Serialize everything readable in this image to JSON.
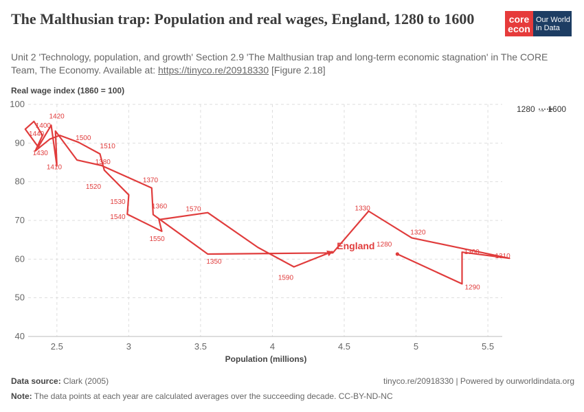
{
  "header": {
    "title": "The Malthusian trap: Population and real wages, England, 1280 to 1600",
    "subtitle_prefix": "Unit 2 'Technology, population, and growth' Section 2.9 'The Malthusian trap and long-term economic stagnation' in The CORE Team, The Economy. Available at: ",
    "subtitle_link": "https://tinyco.re/20918330",
    "subtitle_suffix": " [Figure 2.18]"
  },
  "logo": {
    "core_line1": "core",
    "core_line2": "econ",
    "owid_line1": "Our World",
    "owid_line2": "in Data",
    "core_color": "#e63b3b",
    "owid_color": "#1d3d63"
  },
  "legend": {
    "label": "1280 → 1600"
  },
  "footer": {
    "source_label": "Data source:",
    "source_value": "Clark (2005)",
    "right_text": "tinyco.re/20918330 | Powered by ourworldindata.org",
    "note_label": "Note:",
    "note_value": "The data points at each year are calculated averages over the succeeding decade. CC-BY-ND-NC"
  },
  "chart_data": {
    "type": "scatter",
    "mode": "connected",
    "xlabel": "Population (millions)",
    "ylabel": "Real wage index (1860 = 100)",
    "xlim": [
      2.3,
      5.6
    ],
    "ylim": [
      40,
      100
    ],
    "xticks": [
      2.5,
      3,
      3.5,
      4,
      4.5,
      5,
      5.5
    ],
    "yticks": [
      40,
      50,
      60,
      70,
      80,
      90,
      100
    ],
    "grid": true,
    "color": "#e03c3c",
    "series": [
      {
        "name": "England",
        "points": [
          {
            "year": 1280,
            "x": 4.87,
            "y": 61.3
          },
          {
            "year": 1290,
            "x": 5.32,
            "y": 53.6
          },
          {
            "year": 1300,
            "x": 5.32,
            "y": 61.8
          },
          {
            "year": 1310,
            "x": 5.65,
            "y": 60.2
          },
          {
            "year": 1320,
            "x": 4.97,
            "y": 65.5
          },
          {
            "year": 1330,
            "x": 4.67,
            "y": 72.4
          },
          {
            "year": 1340,
            "x": 4.42,
            "y": 61.6
          },
          {
            "year": 1350,
            "x": 3.55,
            "y": 61.3
          },
          {
            "year": 1360,
            "x": 3.17,
            "y": 71.5
          },
          {
            "year": 1370,
            "x": 3.16,
            "y": 78.4
          },
          {
            "year": 1380,
            "x": 2.81,
            "y": 84.2
          },
          {
            "year": 1390,
            "x": 2.64,
            "y": 85.6
          },
          {
            "year": 1400,
            "x": 2.49,
            "y": 93.1
          },
          {
            "year": 1410,
            "x": 2.5,
            "y": 84.1
          },
          {
            "year": 1420,
            "x": 2.46,
            "y": 94.6
          },
          {
            "year": 1430,
            "x": 2.37,
            "y": 89.0
          },
          {
            "year": 1440,
            "x": 2.28,
            "y": 93.6
          },
          {
            "year": 1450,
            "x": 2.34,
            "y": 95.6
          },
          {
            "year": 1460,
            "x": 2.4,
            "y": 92.0
          },
          {
            "year": 1470,
            "x": 2.35,
            "y": 88.0
          },
          {
            "year": 1480,
            "x": 2.45,
            "y": 91.0
          },
          {
            "year": 1490,
            "x": 2.52,
            "y": 92.0
          },
          {
            "year": 1500,
            "x": 2.65,
            "y": 90.2
          },
          {
            "year": 1510,
            "x": 2.8,
            "y": 87.2
          },
          {
            "year": 1520,
            "x": 2.83,
            "y": 83.0
          },
          {
            "year": 1530,
            "x": 3.0,
            "y": 76.6
          },
          {
            "year": 1540,
            "x": 2.99,
            "y": 71.6
          },
          {
            "year": 1550,
            "x": 3.23,
            "y": 67.2
          },
          {
            "year": 1560,
            "x": 3.21,
            "y": 70.2
          },
          {
            "year": 1570,
            "x": 3.55,
            "y": 72.0
          },
          {
            "year": 1580,
            "x": 3.9,
            "y": 63.0
          },
          {
            "year": 1590,
            "x": 4.15,
            "y": 58.0
          },
          {
            "year": 1600,
            "x": 4.42,
            "y": 62.0
          }
        ]
      }
    ],
    "point_labels": [
      1280,
      1290,
      1300,
      1310,
      1320,
      1330,
      1350,
      1360,
      1370,
      1380,
      1400,
      1410,
      1420,
      1430,
      1440,
      1500,
      1510,
      1520,
      1530,
      1540,
      1550,
      1570,
      1590
    ]
  }
}
